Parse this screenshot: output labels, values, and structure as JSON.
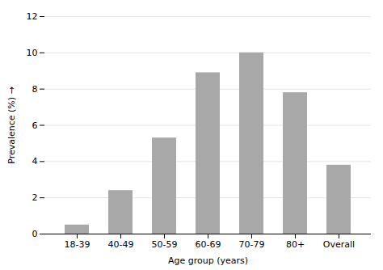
{
  "chart_data": {
    "type": "bar",
    "categories": [
      "18-39",
      "40-49",
      "50-59",
      "60-69",
      "70-79",
      "80+",
      "Overall"
    ],
    "values": [
      0.5,
      2.4,
      5.3,
      8.9,
      10.0,
      7.8,
      3.8
    ],
    "color": "#a8a8a8",
    "xlabel": "Age group (years)",
    "ylabel": "Prevalence (%)",
    "ylim": [
      0,
      12
    ],
    "yticks": [
      0,
      2,
      4,
      6,
      8,
      10,
      12
    ],
    "grid": true
  }
}
